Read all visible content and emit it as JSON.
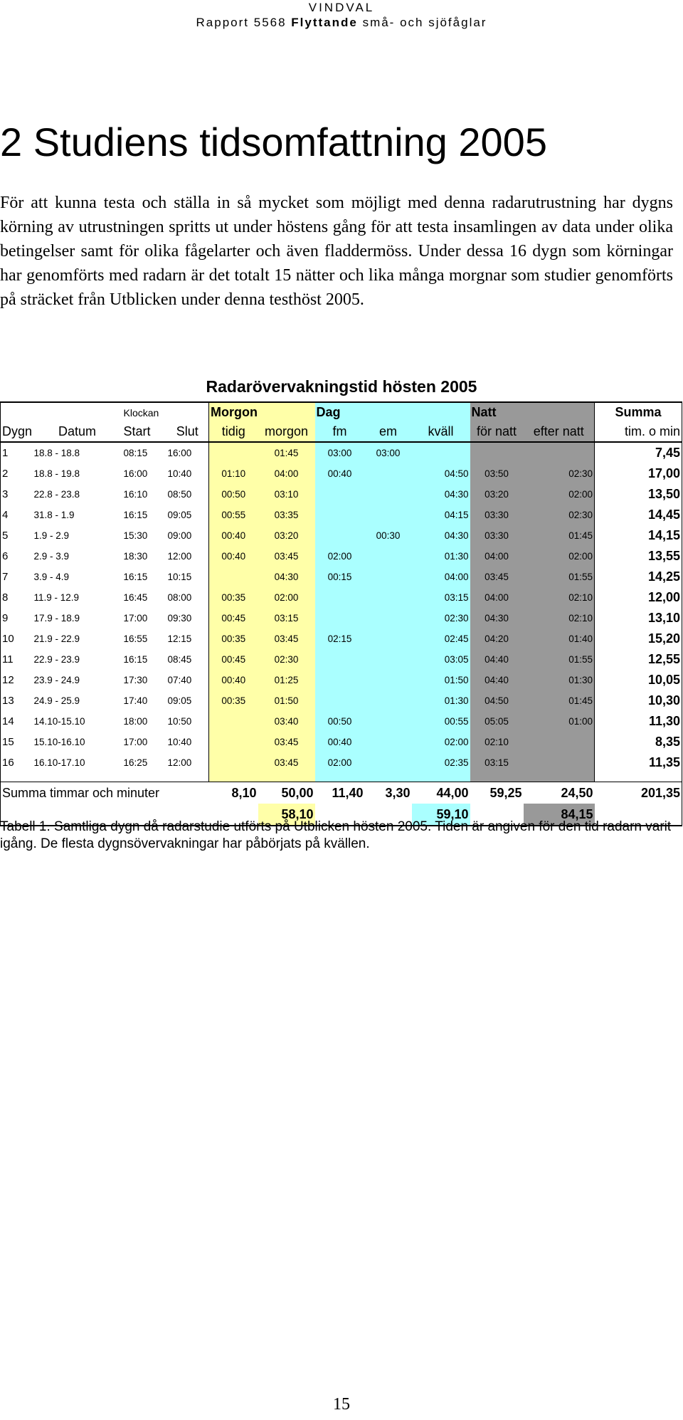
{
  "running_head": {
    "line1": "VINDVAL",
    "line2_pre": "Rapport 5568 ",
    "line2_bold": "Flyttande",
    "line2_post": " små- och sjöfåglar"
  },
  "section_title": "2 Studiens tidsomfattning 2005",
  "paragraph": "För att kunna testa och ställa in så mycket som möjligt med denna radarutrustning har dygns körning av utrustningen spritts ut under höstens gång för att testa insamlingen av data under olika betingelser samt för olika fågelarter och även fladdermöss. Under dessa 16 dygn som körningar har genomförts med radarn är det totalt 15 nätter och lika många morgnar som studier genomförts på sträcket från Utblicken under denna testhöst 2005.",
  "table": {
    "title": "Radarövervakningstid hösten 2005",
    "group_headers": {
      "klockan": "Klockan",
      "morgon": "Morgon",
      "dag": "Dag",
      "natt": "Natt",
      "summa": "Summa"
    },
    "columns": [
      "Dygn",
      "Datum",
      "Start",
      "Slut",
      "tidig",
      "morgon",
      "fm",
      "em",
      "kväll",
      "för natt",
      "efter natt",
      "tim. o min"
    ],
    "rows": [
      [
        "1",
        "18.8 - 18.8",
        "08:15",
        "16:00",
        "",
        "01:45",
        "03:00",
        "03:00",
        "",
        "",
        "",
        "7,45"
      ],
      [
        "2",
        "18.8 - 19.8",
        "16:00",
        "10:40",
        "01:10",
        "04:00",
        "00:40",
        "",
        "04:50",
        "03:50",
        "02:30",
        "17,00"
      ],
      [
        "3",
        "22.8 - 23.8",
        "16:10",
        "08:50",
        "00:50",
        "03:10",
        "",
        "",
        "04:30",
        "03:20",
        "02:00",
        "13,50"
      ],
      [
        "4",
        "31.8 - 1.9",
        "16:15",
        "09:05",
        "00:55",
        "03:35",
        "",
        "",
        "04:15",
        "03:30",
        "02:30",
        "14,45"
      ],
      [
        "5",
        "1.9  - 2.9",
        "15:30",
        "09:00",
        "00:40",
        "03:20",
        "",
        "00:30",
        "04:30",
        "03:30",
        "01:45",
        "14,15"
      ],
      [
        "6",
        "2.9  - 3.9",
        "18:30",
        "12:00",
        "00:40",
        "03:45",
        "02:00",
        "",
        "01:30",
        "04:00",
        "02:00",
        "13,55"
      ],
      [
        "7",
        "3.9  - 4.9",
        "16:15",
        "10:15",
        "",
        "04:30",
        "00:15",
        "",
        "04:00",
        "03:45",
        "01:55",
        "14,25"
      ],
      [
        "8",
        "11.9 - 12.9",
        "16:45",
        "08:00",
        "00:35",
        "02:00",
        "",
        "",
        "03:15",
        "04:00",
        "02:10",
        "12,00"
      ],
      [
        "9",
        "17.9 - 18.9",
        "17:00",
        "09:30",
        "00:45",
        "03:15",
        "",
        "",
        "02:30",
        "04:30",
        "02:10",
        "13,10"
      ],
      [
        "10",
        "21.9 - 22.9",
        "16:55",
        "12:15",
        "00:35",
        "03:45",
        "02:15",
        "",
        "02:45",
        "04:20",
        "01:40",
        "15,20"
      ],
      [
        "11",
        "22.9 - 23.9",
        "16:15",
        "08:45",
        "00:45",
        "02:30",
        "",
        "",
        "03:05",
        "04:40",
        "01:55",
        "12,55"
      ],
      [
        "12",
        "23.9 - 24.9",
        "17:30",
        "07:40",
        "00:40",
        "01:25",
        "",
        "",
        "01:50",
        "04:40",
        "01:30",
        "10,05"
      ],
      [
        "13",
        "24.9 - 25.9",
        "17:40",
        "09:05",
        "00:35",
        "01:50",
        "",
        "",
        "01:30",
        "04:50",
        "01:45",
        "10,30"
      ],
      [
        "14",
        "14.10-15.10",
        "18:00",
        "10:50",
        "",
        "03:40",
        "00:50",
        "",
        "00:55",
        "05:05",
        "01:00",
        "11,30"
      ],
      [
        "15",
        "15.10-16.10",
        "17:00",
        "10:40",
        "",
        "03:45",
        "00:40",
        "",
        "02:00",
        "02:10",
        "",
        "8,35"
      ],
      [
        "16",
        "16.10-17.10",
        "16:25",
        "12:00",
        "",
        "03:45",
        "02:00",
        "",
        "02:35",
        "03:15",
        "",
        "11,35"
      ]
    ],
    "totals": {
      "label": "Summa timmar och minuter",
      "tidig": "8,10",
      "morgon": "50,00",
      "fm": "11,40",
      "em": "3,30",
      "kvall": "44,00",
      "for_natt": "59,25",
      "efter_natt": "24,50",
      "summa": "201,35",
      "morgon_total": "58,10",
      "dag_total": "59,10",
      "natt_total": "84,15"
    },
    "colors": {
      "morgon": "#ffffa8",
      "dag": "#aaffff",
      "natt": "#999999"
    }
  },
  "caption": "Tabell 1. Samtliga dygn då radarstudie utförts på Utblicken hösten 2005. Tiden är angiven för den tid radarn varit igång. De flesta dygnsövervakningar har påbörjats på kvällen.",
  "page_number": "15"
}
